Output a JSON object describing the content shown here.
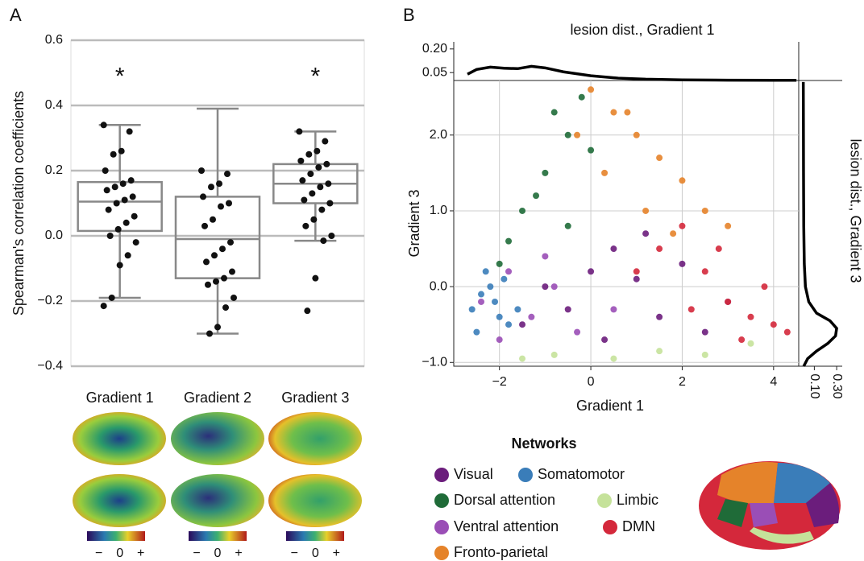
{
  "chart_data": [
    {
      "type": "box",
      "panel": "A",
      "ylabel": "Spearman's correlation coefficients",
      "categories": [
        "Gradient 1",
        "Gradient 2",
        "Gradient 3"
      ],
      "ylim": [
        -0.4,
        0.6
      ],
      "yticks": [
        {
          "value": -0.4,
          "label": "−0.4"
        },
        {
          "value": -0.2,
          "label": "−0.2"
        },
        {
          "value": 0,
          "label": "0.0"
        },
        0.2,
        0.4,
        0.6
      ],
      "grid": true,
      "box_color": "#888888",
      "point_color": "#111111",
      "boxes": [
        {
          "whislo": -0.19,
          "q1": 0.015,
          "med": 0.105,
          "q3": 0.165,
          "whishi": 0.34,
          "points": [
            0.34,
            0.32,
            0.26,
            0.25,
            0.2,
            0.17,
            0.16,
            0.15,
            0.14,
            0.12,
            0.11,
            0.1,
            0.08,
            0.06,
            0.04,
            0.02,
            0.0,
            -0.02,
            -0.06,
            -0.09,
            -0.19,
            -0.215
          ]
        },
        {
          "whislo": -0.3,
          "q1": -0.13,
          "med": -0.01,
          "q3": 0.12,
          "whishi": 0.39,
          "points": [
            0.2,
            0.19,
            0.16,
            0.15,
            0.12,
            0.1,
            0.09,
            0.05,
            0.03,
            -0.02,
            -0.04,
            -0.06,
            -0.08,
            -0.11,
            -0.13,
            -0.14,
            -0.15,
            -0.19,
            -0.22,
            -0.28,
            -0.3
          ]
        },
        {
          "whislo": -0.015,
          "q1": 0.1,
          "med": 0.16,
          "q3": 0.22,
          "whishi": 0.32,
          "points": [
            0.32,
            0.29,
            0.26,
            0.25,
            0.23,
            0.22,
            0.21,
            0.19,
            0.17,
            0.16,
            0.15,
            0.13,
            0.11,
            0.1,
            0.08,
            0.05,
            0.03,
            0.0,
            -0.015,
            -0.13,
            -0.23
          ]
        }
      ],
      "annotations": [
        {
          "text": "*",
          "category": "Gradient 1",
          "y": 0.5
        },
        {
          "text": "*",
          "category": "Gradient 3",
          "y": 0.5
        }
      ],
      "colorbar_labels": [
        "−",
        "0",
        "+"
      ]
    },
    {
      "type": "scatter",
      "panel": "B",
      "xlabel": "Gradient 1",
      "ylabel": "Gradient 3",
      "xlim": [
        -3.0,
        4.55
      ],
      "ylim": [
        -1.05,
        2.72
      ],
      "xticks": [
        {
          "value": -2,
          "label": "−2"
        },
        0,
        2,
        4
      ],
      "yticks": [
        {
          "value": -1,
          "label": "−1.0"
        },
        {
          "value": 0,
          "label": "0.0"
        },
        {
          "value": 1,
          "label": "1.0"
        },
        {
          "value": 2,
          "label": "2.0"
        }
      ],
      "grid": true,
      "legend_title": "Networks",
      "series": [
        {
          "name": "Visual",
          "color": "#6b1d7c",
          "x": [
            -1.5,
            -0.5,
            0,
            0.5,
            1,
            1.5,
            2,
            -1,
            0.3,
            1.2,
            2.5,
            3
          ],
          "y": [
            -0.5,
            -0.3,
            0.2,
            0.5,
            0.1,
            -0.4,
            0.3,
            0.0,
            -0.7,
            0.7,
            -0.6,
            -0.2
          ]
        },
        {
          "name": "Somatomotor",
          "color": "#3a7db9",
          "x": [
            -2.6,
            -2.4,
            -2.2,
            -2.0,
            -1.8,
            -2.5,
            -1.6,
            -2.3,
            -2.1,
            -1.9
          ],
          "y": [
            -0.3,
            -0.1,
            0.0,
            -0.4,
            -0.5,
            -0.6,
            -0.3,
            0.2,
            -0.2,
            0.1
          ]
        },
        {
          "name": "Dorsal attention",
          "color": "#1f6b38",
          "x": [
            -1.5,
            -1.0,
            -0.5,
            -0.2,
            -1.8,
            -0.8,
            -1.2,
            0.0,
            -2.0,
            -0.5
          ],
          "y": [
            1.0,
            1.5,
            2.0,
            2.5,
            0.6,
            2.3,
            1.2,
            1.8,
            0.3,
            0.8
          ]
        },
        {
          "name": "Limbic",
          "color": "#c5e29a",
          "x": [
            -0.8,
            0.5,
            1.5,
            2.5,
            3.5,
            -1.5
          ],
          "y": [
            -0.9,
            -0.95,
            -0.85,
            -0.9,
            -0.75,
            -0.95
          ]
        },
        {
          "name": "Ventral attention",
          "color": "#9a4eb6",
          "x": [
            -2.4,
            -1.8,
            -1.3,
            -0.8,
            -0.3,
            -2.0,
            -1.0,
            0.5
          ],
          "y": [
            -0.2,
            0.2,
            -0.4,
            0.0,
            -0.6,
            -0.7,
            0.4,
            -0.3
          ]
        },
        {
          "name": "DMN",
          "color": "#d4283b",
          "x": [
            1.5,
            2,
            2.5,
            3,
            3.5,
            4,
            4.3,
            2.8,
            3.8,
            1.0,
            2.2,
            3.3
          ],
          "y": [
            0.5,
            0.8,
            0.2,
            -0.2,
            -0.4,
            -0.5,
            -0.6,
            0.5,
            0.0,
            0.2,
            -0.3,
            -0.7
          ]
        },
        {
          "name": "Fronto-parietal",
          "color": "#e5832a",
          "x": [
            0,
            0.5,
            1,
            1.5,
            2,
            0.3,
            1.2,
            2.5,
            0.8,
            -0.3,
            1.8,
            3
          ],
          "y": [
            2.6,
            2.3,
            2.0,
            1.7,
            1.4,
            1.5,
            1.0,
            1.0,
            2.3,
            2.0,
            0.7,
            0.8
          ]
        }
      ]
    },
    {
      "type": "line",
      "title": "lesion dist., Gradient 1",
      "ylim": [
        0,
        0.245
      ],
      "yticks": [
        {
          "value": 0.05,
          "label": "0.05"
        },
        {
          "value": 0.2,
          "label": "0.20"
        }
      ],
      "x": [
        -2.7,
        -2.5,
        -2.2,
        -1.9,
        -1.6,
        -1.3,
        -1.0,
        -0.6,
        0,
        0.6,
        1.2,
        2,
        3,
        4,
        4.5
      ],
      "values": [
        0.04,
        0.07,
        0.085,
        0.078,
        0.075,
        0.09,
        0.08,
        0.055,
        0.03,
        0.015,
        0.008,
        0.004,
        0.002,
        0.001,
        0.001
      ],
      "color": "#000000"
    },
    {
      "type": "hline",
      "title": "lesion dist., Gradient 3",
      "xlim": [
        -0.04,
        0.35
      ],
      "xticks": [
        {
          "value": 0.1,
          "label": "0.10"
        },
        {
          "value": 0.3,
          "label": "0.30"
        }
      ],
      "y": [
        -1.05,
        -0.95,
        -0.85,
        -0.75,
        -0.65,
        -0.55,
        -0.45,
        -0.35,
        -0.2,
        0,
        0.3,
        0.8,
        1.5,
        2.2,
        2.7
      ],
      "values": [
        0.005,
        0.04,
        0.12,
        0.22,
        0.29,
        0.3,
        0.24,
        0.12,
        0.05,
        0.02,
        0.01,
        0.005,
        0.003,
        0.002,
        0.001
      ],
      "color": "#000000"
    }
  ]
}
